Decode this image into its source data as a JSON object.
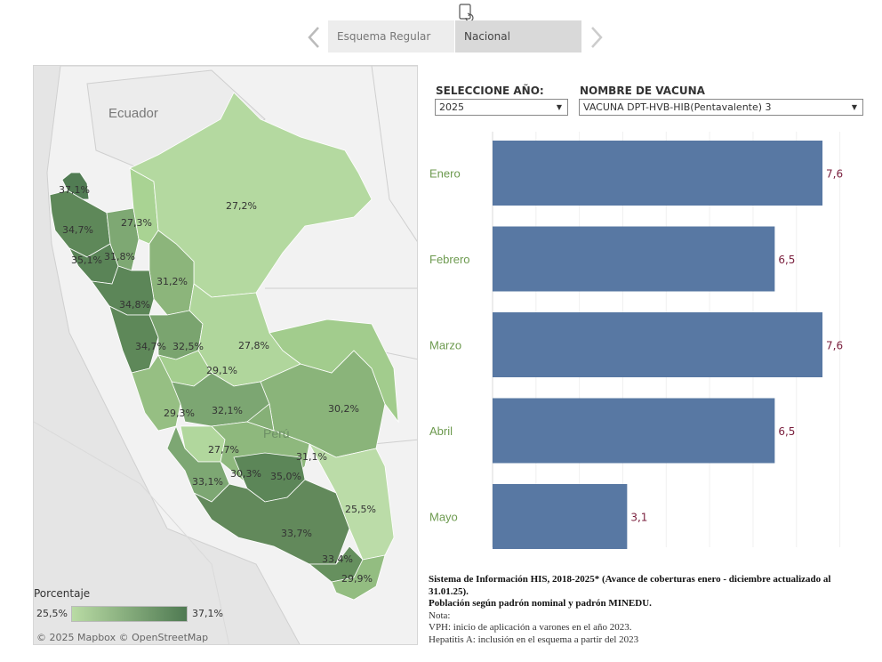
{
  "nav": {
    "tabs": [
      {
        "label": "Esquema Regular",
        "active": false
      },
      {
        "label": "Nacional",
        "active": true
      }
    ]
  },
  "map": {
    "country_labels": {
      "ecuador": "Ecuador",
      "peru": "Perú"
    },
    "regions": [
      {
        "label": "37,1%",
        "value": 37.1
      },
      {
        "label": "34,7%",
        "value": 34.7
      },
      {
        "label": "35,1%",
        "value": 35.1
      },
      {
        "label": "27,3%",
        "value": 27.3
      },
      {
        "label": "31,8%",
        "value": 31.8
      },
      {
        "label": "27,2%",
        "value": 27.2
      },
      {
        "label": "31,2%",
        "value": 31.2
      },
      {
        "label": "34,8%",
        "value": 34.8
      },
      {
        "label": "34,7%",
        "value": 34.7
      },
      {
        "label": "32,5%",
        "value": 32.5
      },
      {
        "label": "27,8%",
        "value": 27.8
      },
      {
        "label": "29,1%",
        "value": 29.1
      },
      {
        "label": "29,3%",
        "value": 29.3
      },
      {
        "label": "32,1%",
        "value": 32.1
      },
      {
        "label": "30,2%",
        "value": 30.2
      },
      {
        "label": "27,7%",
        "value": 27.7
      },
      {
        "label": "31,1%",
        "value": 31.1
      },
      {
        "label": "30,3%",
        "value": 30.3
      },
      {
        "label": "35,0%",
        "value": 35.0
      },
      {
        "label": "33,1%",
        "value": 33.1
      },
      {
        "label": "25,5%",
        "value": 25.5
      },
      {
        "label": "33,7%",
        "value": 33.7
      },
      {
        "label": "33,4%",
        "value": 33.4
      },
      {
        "label": "29,9%",
        "value": 29.9
      }
    ],
    "legend": {
      "title": "Porcentaje",
      "min": "25,5%",
      "max": "37,1%",
      "color_min": "#b9dba4",
      "color_max": "#4f7a52"
    },
    "attribution": "© 2025 Mapbox  © OpenStreetMap"
  },
  "filters": {
    "year_label": "SELECCIONE AÑO:",
    "year_value": "2025",
    "vaccine_label": "NOMBRE DE VACUNA",
    "vaccine_value": "VACUNA DPT-HVB-HIB(Pentavalente) 3"
  },
  "chart_data": {
    "type": "bar",
    "orientation": "horizontal",
    "categories": [
      "Enero",
      "Febrero",
      "Marzo",
      "Abril",
      "Mayo"
    ],
    "values": [
      7.6,
      6.5,
      7.6,
      6.5,
      3.1
    ],
    "value_labels": [
      "7,6",
      "6,5",
      "7,6",
      "6,5",
      "3,1"
    ],
    "xlim": [
      0,
      8.5
    ],
    "bar_color": "#5878a3",
    "label_color": "#7a1f3d",
    "category_color": "#6d9a4f"
  },
  "notes": {
    "line1": "Sistema de Información HIS, 2018-2025* (Avance de coberturas enero - diciembre actualizado al 31.01.25).",
    "line2": "Población según padrón nominal y padrón MINEDU.",
    "line3": "Nota:",
    "line4": "VPH: inicio de aplicación a varones en el año 2023.",
    "line5": "Hepatitis A: inclusión en el esquema a partir del 2023"
  }
}
